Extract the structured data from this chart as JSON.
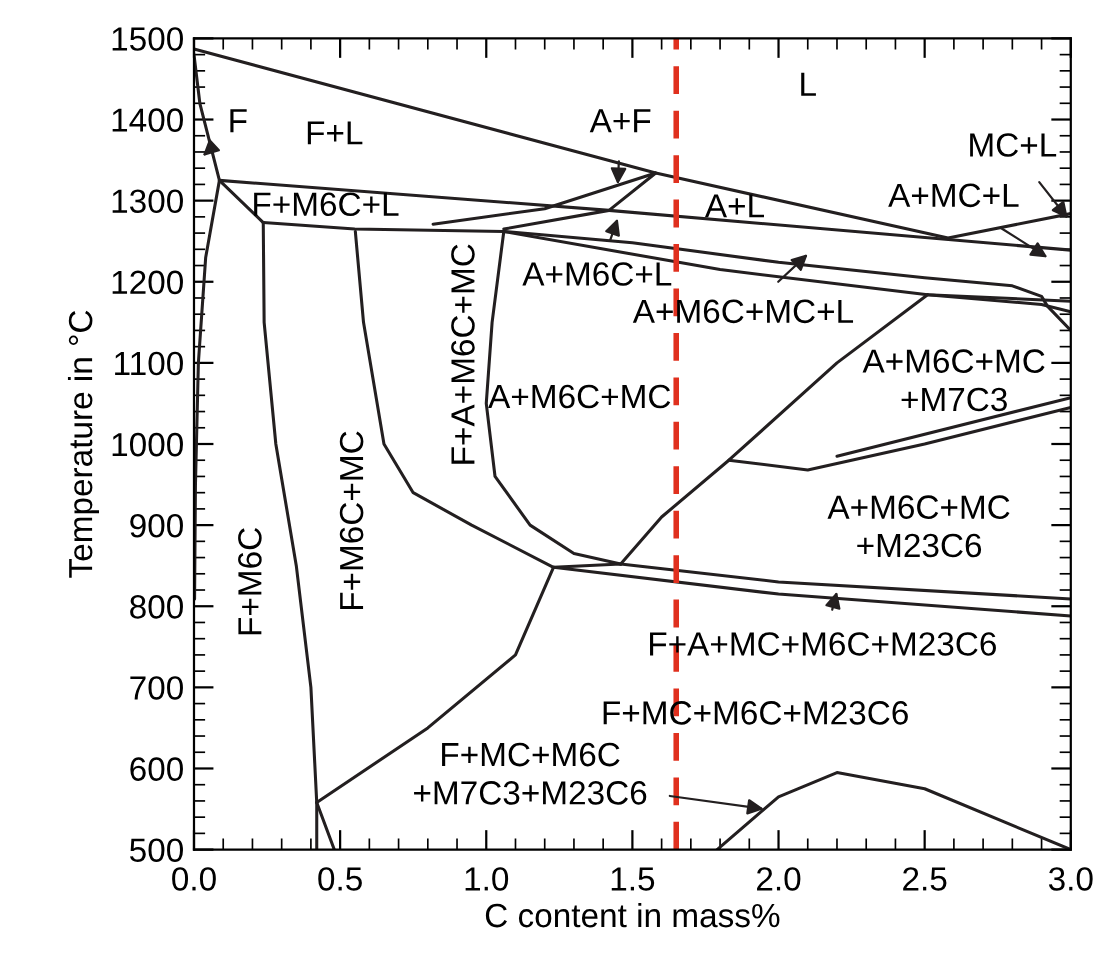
{
  "chart_data": {
    "type": "line",
    "xlabel": "C content in mass%",
    "ylabel": "Temperature in °C",
    "xlim": [
      0,
      3.0
    ],
    "ylim": [
      500,
      1500
    ],
    "xticks": [
      {
        "value": 0,
        "label": "0.0"
      },
      {
        "value": 0.5,
        "label": "0.5"
      },
      {
        "value": 1.0,
        "label": "1.0"
      },
      {
        "value": 1.5,
        "label": "1.5"
      },
      {
        "value": 2.0,
        "label": "2.0"
      },
      {
        "value": 2.5,
        "label": "2.5"
      },
      {
        "value": 3.0,
        "label": "3.0"
      }
    ],
    "yticks": [
      500,
      600,
      700,
      800,
      900,
      1000,
      1100,
      1200,
      1300,
      1400,
      1500
    ],
    "grid": false,
    "legend": false,
    "marker": "none",
    "line_style": "solid",
    "series": [
      {
        "color": "#231f20",
        "x": [
          0,
          1.58,
          2.58,
          3.0
        ],
        "values": [
          1487,
          1334,
          1254,
          1284
        ]
      },
      {
        "color": "#231f20",
        "x": [
          0,
          0.02,
          0.087,
          0.04,
          0.015,
          0.005,
          0.002
        ],
        "values": [
          1480,
          1420,
          1325,
          1230,
          1100,
          950,
          809
        ]
      },
      {
        "color": "#231f20",
        "x": [
          0.087,
          1.42,
          3.0
        ],
        "values": [
          1325,
          1288,
          1239
        ]
      },
      {
        "color": "#231f20",
        "x": [
          0.087,
          0.237
        ],
        "values": [
          1325,
          1273
        ]
      },
      {
        "color": "#231f20",
        "x": [
          0.237,
          0.55,
          1.06,
          1.5,
          2.0,
          2.5,
          2.8,
          2.9,
          2.92,
          3.0
        ],
        "values": [
          1273,
          1265,
          1262,
          1248,
          1224,
          1205,
          1195,
          1182,
          1170,
          1140
        ]
      },
      {
        "color": "#231f20",
        "x": [
          1.06,
          1.8,
          2.51,
          3.0
        ],
        "values": [
          1262,
          1215,
          1184,
          1176
        ]
      },
      {
        "color": "#231f20",
        "x": [
          2.51,
          2.9,
          3.0
        ],
        "values": [
          1184,
          1172,
          1163
        ]
      },
      {
        "color": "#231f20",
        "x": [
          0.818,
          1.2,
          1.58
        ],
        "values": [
          1271,
          1290,
          1334
        ]
      },
      {
        "color": "#231f20",
        "x": [
          1.06,
          1.42,
          1.58
        ],
        "values": [
          1265,
          1288,
          1334
        ]
      },
      {
        "color": "#231f20",
        "x": [
          0.237,
          0.24,
          0.28,
          0.35,
          0.4,
          0.42,
          0.42
        ],
        "values": [
          1273,
          1150,
          1000,
          850,
          700,
          558,
          500
        ]
      },
      {
        "color": "#231f20",
        "x": [
          0.42,
          0.48
        ],
        "values": [
          558,
          500
        ]
      },
      {
        "color": "#231f20",
        "x": [
          0.552,
          0.58,
          0.65,
          0.75,
          0.95,
          1.23,
          1.46,
          2.0,
          3.0
        ],
        "values": [
          1262,
          1150,
          1000,
          940,
          900,
          848,
          852,
          830,
          809
        ]
      },
      {
        "color": "#231f20",
        "x": [
          1.06,
          1.02,
          1.0,
          1.03,
          1.15,
          1.3,
          1.46
        ],
        "values": [
          1262,
          1150,
          1050,
          960,
          900,
          865,
          852
        ]
      },
      {
        "color": "#231f20",
        "x": [
          1.23,
          2.0,
          3.0
        ],
        "values": [
          848,
          815,
          788
        ]
      },
      {
        "color": "#231f20",
        "x": [
          0.42,
          0.8,
          1.1,
          1.23
        ],
        "values": [
          558,
          650,
          740,
          848
        ]
      },
      {
        "color": "#231f20",
        "x": [
          1.46,
          1.6,
          1.83,
          2.2,
          2.51
        ],
        "values": [
          852,
          910,
          980,
          1100,
          1184
        ]
      },
      {
        "color": "#231f20",
        "x": [
          1.83,
          2.1,
          2.5,
          3.0
        ],
        "values": [
          980,
          968,
          1000,
          1045
        ]
      },
      {
        "color": "#231f20",
        "x": [
          2.2,
          3.0
        ],
        "values": [
          985,
          1057
        ]
      },
      {
        "color": "#231f20",
        "x": [
          1.79,
          2.0,
          2.2,
          2.5,
          3.0
        ],
        "values": [
          500,
          565,
          595,
          575,
          500
        ]
      }
    ],
    "ref_lines": [
      {
        "axis": "x",
        "value": 1.65,
        "color": "#e0301e",
        "line_style": "dashed"
      }
    ],
    "annotations": [
      "L",
      {
        "text": "F",
        "x": 0.03,
        "y": 1355
      },
      "F+L",
      {
        "text": "A+F",
        "x": 1.45,
        "y": 1320
      },
      "F+M6C+L",
      "A+L",
      {
        "text": "MC+L",
        "x": 2.99,
        "y": 1278
      },
      {
        "text": "A+MC+L",
        "x": 2.92,
        "y": 1230
      },
      {
        "text": "A+M6C+L",
        "x": 1.45,
        "y": 1278
      },
      {
        "text": "A+M6C+MC+L",
        "x": 2.1,
        "y": 1234
      },
      "A+M6C+MC",
      "A+M6C+MC\n+M7C3",
      "A+M6C+MC\n+M23C6",
      {
        "text": "F+A+MC+M6C+M23C6",
        "x": 2.2,
        "y": 818
      },
      "F+MC+M6C+M23C6",
      {
        "text": "F+MC+M6C\n+M7C3+M23C6",
        "x": 1.95,
        "y": 550
      },
      "F+M6C",
      "F+M6C+MC",
      "F+A+M6C+MC"
    ]
  }
}
